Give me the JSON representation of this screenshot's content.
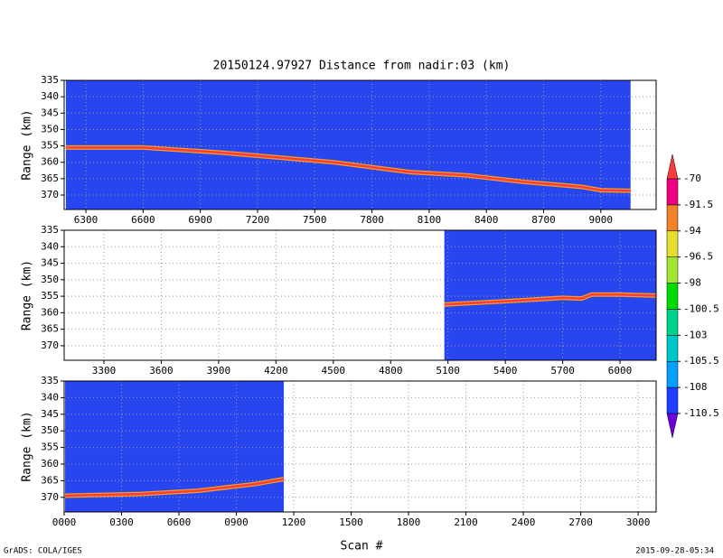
{
  "page": {
    "title": "20150124.97927    Distance from nadir:03 (km)",
    "xlabel": "Scan #",
    "credit": "GrADS: COLA/IGES",
    "timestamp": "2015-09-28-05:34"
  },
  "chart_data": [
    {
      "type": "line",
      "ylabel": "Range (km)",
      "xlim": [
        6186,
        9290
      ],
      "ylim": [
        374.4,
        335
      ],
      "data_xlim": [
        6195,
        9156
      ],
      "background": "#2846f0",
      "grid": true,
      "xticks": [
        6300,
        6600,
        6900,
        7200,
        7500,
        7800,
        8100,
        8400,
        8700,
        9000
      ],
      "yticks": [
        335,
        340,
        345,
        350,
        355,
        360,
        365,
        370
      ],
      "series": [
        {
          "color": "#fa3c3c",
          "x": [
            6195,
            6600,
            7000,
            7300,
            7600,
            8000,
            8300,
            8600,
            8900,
            9000,
            9156
          ],
          "values": [
            355.5,
            355.5,
            357,
            358.5,
            360,
            363,
            364,
            366,
            367.5,
            368.5,
            368.7
          ]
        }
      ]
    },
    {
      "type": "line",
      "ylabel": "Range (km)",
      "xlim": [
        3092,
        6189
      ],
      "ylim": [
        374.4,
        335
      ],
      "data_xlim": [
        5081,
        6189
      ],
      "background": "#2846f0",
      "grid": true,
      "xticks": [
        3300,
        3600,
        3900,
        4200,
        4500,
        4800,
        5100,
        5400,
        5700,
        6000
      ],
      "yticks": [
        335,
        340,
        345,
        350,
        355,
        360,
        365,
        370
      ],
      "series": [
        {
          "color": "#fa3c3c",
          "x": [
            5081,
            5400,
            5700,
            5800,
            5850,
            6000,
            6189
          ],
          "values": [
            357.5,
            356.5,
            355.5,
            355.7,
            354.5,
            354.5,
            354.8
          ]
        }
      ]
    },
    {
      "type": "line",
      "ylabel": "Range (km)",
      "xlim": [
        0,
        3094
      ],
      "ylim": [
        374.4,
        335
      ],
      "data_xlim": [
        5,
        1148
      ],
      "background": "#2846f0",
      "grid": true,
      "xticks": [
        {
          "value": 0,
          "label": "0000"
        },
        {
          "value": 300,
          "label": "0300"
        },
        {
          "value": 600,
          "label": "0600"
        },
        {
          "value": 900,
          "label": "0900"
        },
        1200,
        1500,
        1800,
        2100,
        2400,
        2700,
        3000
      ],
      "yticks": [
        335,
        340,
        345,
        350,
        355,
        360,
        365,
        370
      ],
      "series": [
        {
          "color": "#fa3c3c",
          "x": [
            5,
            400,
            700,
            1000,
            1148
          ],
          "values": [
            369.5,
            369,
            368,
            366,
            364.5
          ]
        }
      ]
    },
    {
      "type": "colorbar",
      "levels": [
        -110.5,
        -108,
        -105.5,
        -103,
        -100.5,
        -98,
        -96.5,
        -94,
        -91.5,
        -70
      ],
      "colors": [
        "#6e00dc",
        "#1e3cff",
        "#00a0ff",
        "#00c8c8",
        "#00d28c",
        "#00dc00",
        "#a0e632",
        "#e6dc32",
        "#f08228",
        "#f00082",
        "#fa3c3c"
      ]
    }
  ]
}
